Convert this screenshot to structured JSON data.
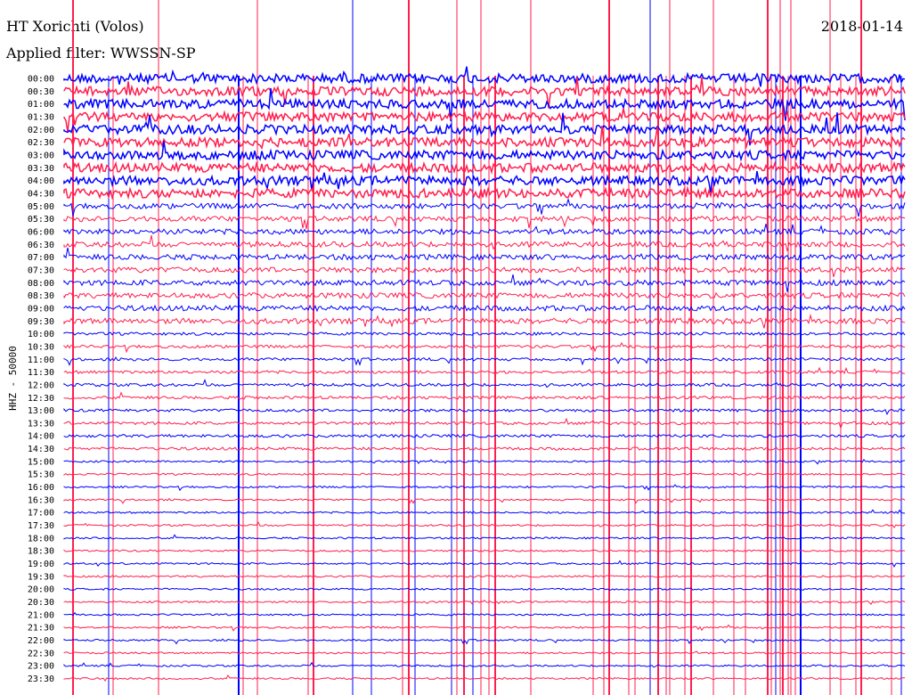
{
  "chart_data": {
    "type": "line",
    "title": "HT Xorichti (Volos)",
    "subtitle": "Applied filter: WWSSN-SP",
    "date": "2018-01-14",
    "ylabel": "HHZ - 50000",
    "xlabel": "",
    "row_interval_minutes": 30,
    "tick_labels": [
      "00:00",
      "00:30",
      "01:00",
      "01:30",
      "02:00",
      "02:30",
      "03:00",
      "03:30",
      "04:00",
      "04:30",
      "05:00",
      "05:30",
      "06:00",
      "06:30",
      "07:00",
      "07:30",
      "08:00",
      "08:30",
      "09:00",
      "09:30",
      "10:00",
      "10:30",
      "11:00",
      "11:30",
      "12:00",
      "12:30",
      "13:00",
      "13:30",
      "14:00",
      "14:30",
      "15:00",
      "15:30",
      "16:00",
      "16:30",
      "17:00",
      "17:30",
      "18:00",
      "18:30",
      "19:00",
      "19:30",
      "20:00",
      "20:30",
      "21:00",
      "21:30",
      "22:00",
      "22:30",
      "23:00",
      "23:30"
    ],
    "series": [
      {
        "name": "even rows",
        "color": "#0000ff"
      },
      {
        "name": "odd rows",
        "color": "#ff1f4f"
      }
    ],
    "grid": false
  }
}
